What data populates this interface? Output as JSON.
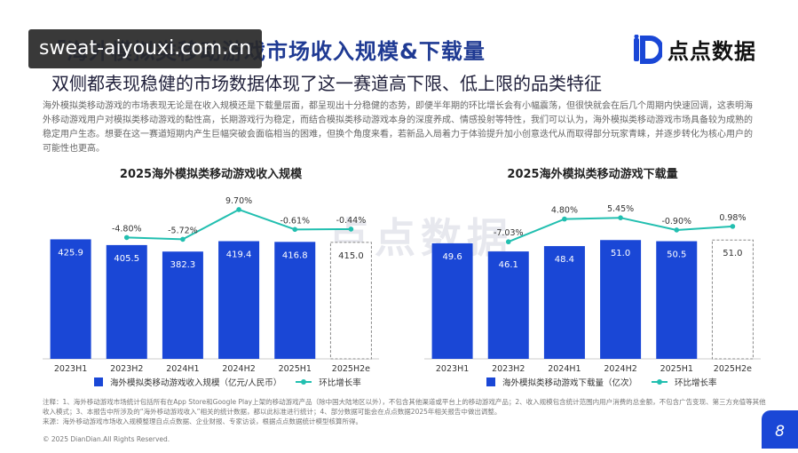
{
  "header": {
    "title": "「海外模拟类移动游戏市场收入规模&下载量",
    "subtitle": "双侧都表现稳健的市场数据体现了这一赛道高下限、低上限的品类特征",
    "watermark_text": "sweat-aiyouxi.com.cn"
  },
  "logo": {
    "text": "点点数据",
    "mark_icon": "diandian-logo-icon",
    "color": "#1a47d6"
  },
  "paragraph": "海外模拟类移动游戏的市场表现无论是在收入规模还是下载量层面，都呈现出十分稳健的态势，即便半年期的环比增长会有小幅震荡，但很快就会在后几个周期内快速回调，这表明海外移动游戏用户对模拟类移动游戏的黏性高，长期游戏行为稳定，而结合模拟类移动游戏本身的深度养成、情感投射等特性，我们可以认为，海外模拟类移动游戏市场具备较为成熟的稳定用户生态。想要在这一赛道短期内产生巨幅突破会面临相当的困难，但换个角度来看，若新品入局着力于体验提升加小创意迭代从而取得部分玩家青睐，并逐步转化为核心用户的可能性也更高。",
  "background_watermark": "点点数据",
  "chart_data": [
    {
      "type": "bar",
      "title": "2025海外模拟类移动游戏收入规模",
      "categories": [
        "2023H1",
        "2023H2",
        "2024H1",
        "2024H2",
        "2025H1",
        "2025H2e"
      ],
      "series": [
        {
          "name": "海外模拟类移动游戏收入规模（亿元/人民币）",
          "type": "bar",
          "values": [
            425.9,
            405.5,
            382.3,
            419.4,
            416.8,
            415.0
          ],
          "labels": [
            "425.9",
            "405.5",
            "382.3",
            "419.4",
            "416.8",
            "415.0"
          ]
        },
        {
          "name": "环比增长率",
          "type": "line",
          "values": [
            null,
            -4.8,
            -5.72,
            9.7,
            -0.61,
            -0.44
          ],
          "labels": [
            "",
            "-4.80%",
            "-5.72%",
            "9.70%",
            "-0.61%",
            "-0.44%"
          ]
        }
      ],
      "estimated_index": 5,
      "ylim": [
        0,
        440
      ],
      "growth_ylim": [
        -12,
        12
      ],
      "colors": {
        "bar": "#1a47d6",
        "line": "#22bfb0"
      }
    },
    {
      "type": "bar",
      "title": "2025海外模拟类移动游戏下载量",
      "categories": [
        "2023H1",
        "2023H2",
        "2024H1",
        "2024H2",
        "2025H1",
        "2025H2e"
      ],
      "series": [
        {
          "name": "海外模拟类移动游戏下载量（亿次）",
          "type": "bar",
          "values": [
            49.6,
            46.1,
            48.4,
            51.0,
            50.5,
            51.0
          ],
          "labels": [
            "49.6",
            "46.1",
            "48.4",
            "51.0",
            "50.5",
            "51.0"
          ]
        },
        {
          "name": "环比增长率",
          "type": "line",
          "values": [
            null,
            -7.03,
            4.8,
            5.45,
            -0.9,
            0.98
          ],
          "labels": [
            "",
            "-7.03%",
            "4.80%",
            "5.45%",
            "-0.90%",
            "0.98%"
          ]
        }
      ],
      "estimated_index": 5,
      "ylim": [
        0,
        53
      ],
      "growth_ylim": [
        -12,
        12
      ],
      "colors": {
        "bar": "#1a47d6",
        "line": "#22bfb0"
      }
    }
  ],
  "notes": {
    "line1": "注释：1、海外移动游戏市场统计包括所有在App Store和Google Play上架的移动游戏产品（除中国大陆地区以外），不包含其他渠道或平台上的移动游戏产品；2、收入规模包含统计范围内用户消费的总金额，不包含广告变现、第三方充值等其他收入模式；3、本报告中所涉及的“海外移动游戏收入”相关的统计数据，都以此标准进行统计；4、部分数据可能会在点点数据2025年相关报告中做出调整。",
    "line2": "来源：海外移动游戏市场收入规模整理自点点数据、企业财报、专家访谈，根据点点数据统计模型核算所得。"
  },
  "footer": {
    "copyright": "© 2025 DianDian.All Rights Reserved.",
    "page_number": "8"
  }
}
